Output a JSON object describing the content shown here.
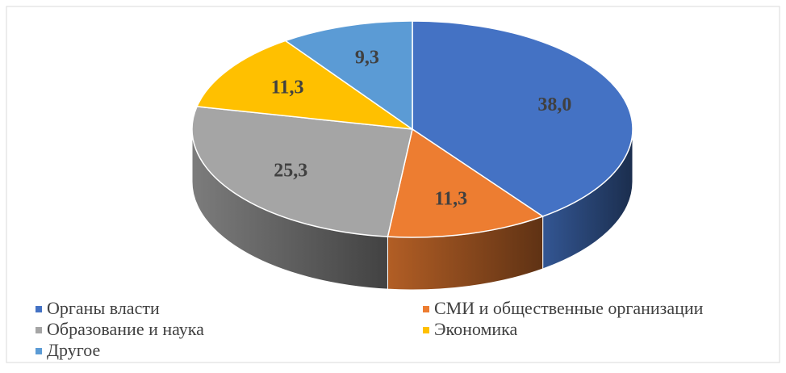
{
  "chart_data": {
    "type": "pie",
    "categories": [
      "Органы власти",
      "СМИ и общественные организации",
      "Образование и наука",
      "Экономика",
      "Другое"
    ],
    "values": [
      38.0,
      11.3,
      25.3,
      11.3,
      9.3
    ],
    "value_labels": [
      "38,0",
      "11,3",
      "25,3",
      "11,3",
      "9,3"
    ],
    "colors": [
      "#4472c4",
      "#ed7d31",
      "#a5a5a5",
      "#ffc000",
      "#5b9bd5"
    ]
  }
}
